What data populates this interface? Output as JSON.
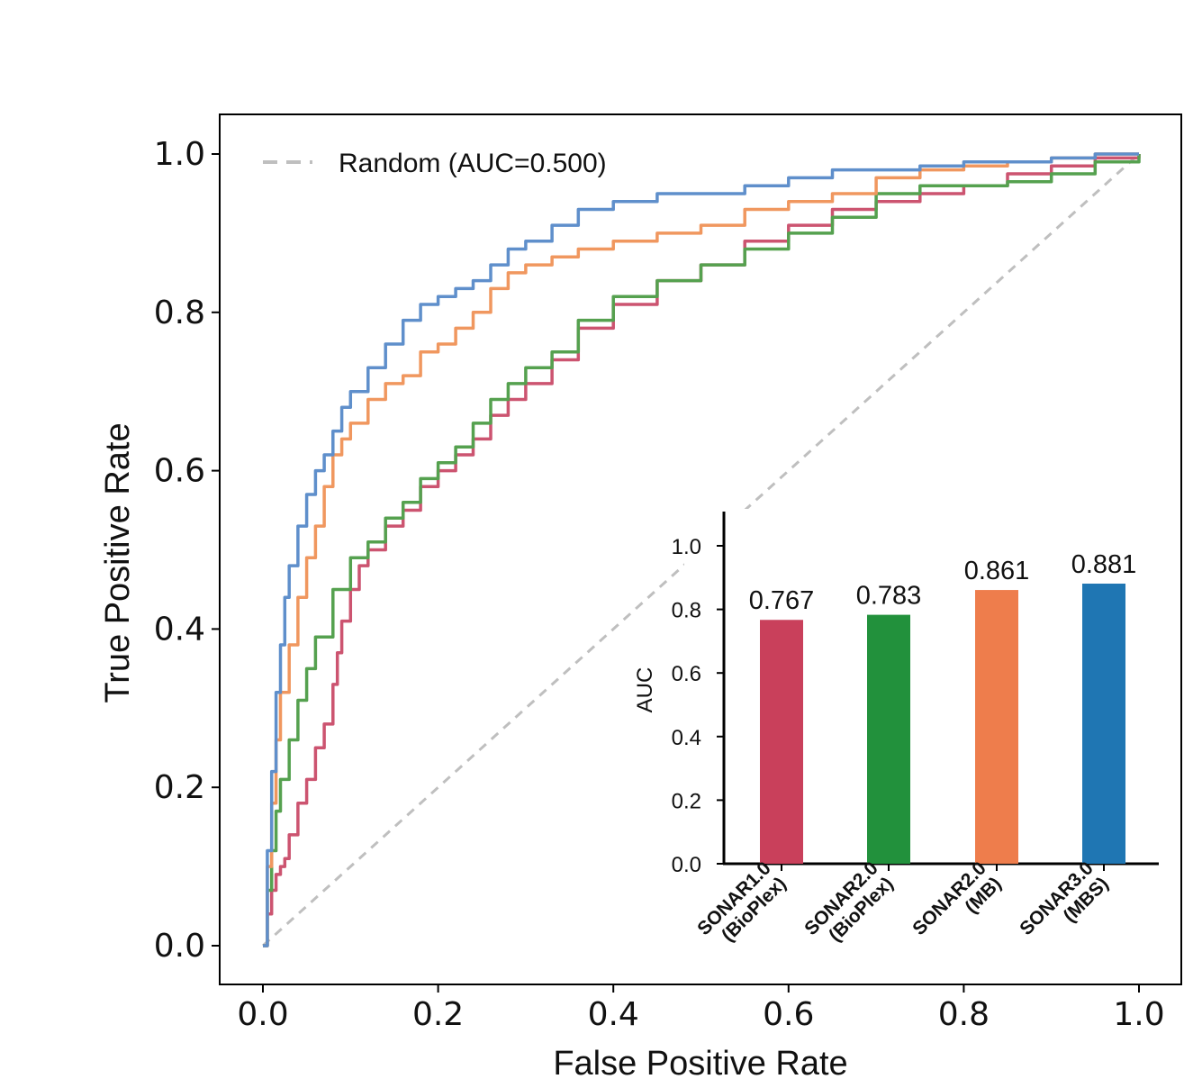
{
  "chart_data": [
    {
      "type": "line",
      "title": "",
      "xlabel": "False Positive Rate",
      "ylabel": "True Positive Rate",
      "xlim": [
        -0.05,
        1.05
      ],
      "ylim": [
        -0.05,
        1.05
      ],
      "xticks": [
        "0.0",
        "0.2",
        "0.4",
        "0.6",
        "0.8",
        "1.0"
      ],
      "yticks": [
        "0.0",
        "0.2",
        "0.4",
        "0.6",
        "0.8",
        "1.0"
      ],
      "grid": false,
      "legend": {
        "position": "top-left",
        "entries": [
          "Random (AUC=0.500)"
        ]
      },
      "series": [
        {
          "name": "Random (AUC=0.500)",
          "color": "#bfbfbf",
          "dashed": true,
          "x": [
            0.0,
            1.0
          ],
          "y": [
            0.0,
            1.0
          ]
        },
        {
          "name": "SONAR1.0 (BioPlex)",
          "color": "#cc5470",
          "x": [
            0.0,
            0.005,
            0.01,
            0.015,
            0.02,
            0.025,
            0.03,
            0.04,
            0.05,
            0.06,
            0.07,
            0.08,
            0.085,
            0.09,
            0.1,
            0.11,
            0.12,
            0.14,
            0.16,
            0.18,
            0.2,
            0.22,
            0.24,
            0.26,
            0.28,
            0.3,
            0.33,
            0.36,
            0.4,
            0.45,
            0.5,
            0.55,
            0.6,
            0.65,
            0.7,
            0.75,
            0.8,
            0.85,
            0.9,
            0.95,
            1.0
          ],
          "y": [
            0.0,
            0.04,
            0.07,
            0.09,
            0.1,
            0.11,
            0.14,
            0.18,
            0.21,
            0.25,
            0.28,
            0.33,
            0.37,
            0.41,
            0.45,
            0.48,
            0.5,
            0.53,
            0.55,
            0.58,
            0.6,
            0.62,
            0.64,
            0.67,
            0.69,
            0.71,
            0.74,
            0.78,
            0.81,
            0.84,
            0.86,
            0.89,
            0.91,
            0.93,
            0.94,
            0.95,
            0.96,
            0.975,
            0.985,
            0.995,
            1.0
          ]
        },
        {
          "name": "SONAR2.0 (BioPlex)",
          "color": "#55a14f",
          "x": [
            0.0,
            0.005,
            0.01,
            0.015,
            0.02,
            0.03,
            0.04,
            0.05,
            0.06,
            0.08,
            0.1,
            0.12,
            0.14,
            0.16,
            0.18,
            0.2,
            0.22,
            0.24,
            0.26,
            0.28,
            0.3,
            0.33,
            0.36,
            0.4,
            0.45,
            0.5,
            0.55,
            0.6,
            0.65,
            0.7,
            0.75,
            0.8,
            0.85,
            0.9,
            0.95,
            1.0
          ],
          "y": [
            0.0,
            0.07,
            0.12,
            0.17,
            0.21,
            0.26,
            0.31,
            0.35,
            0.39,
            0.45,
            0.49,
            0.51,
            0.54,
            0.56,
            0.59,
            0.61,
            0.63,
            0.66,
            0.69,
            0.71,
            0.73,
            0.75,
            0.79,
            0.82,
            0.84,
            0.86,
            0.88,
            0.9,
            0.92,
            0.95,
            0.96,
            0.96,
            0.965,
            0.975,
            0.99,
            1.0
          ]
        },
        {
          "name": "SONAR2.0 (MB)",
          "color": "#f0975f",
          "x": [
            0.0,
            0.005,
            0.01,
            0.015,
            0.02,
            0.03,
            0.04,
            0.05,
            0.06,
            0.07,
            0.08,
            0.09,
            0.1,
            0.12,
            0.14,
            0.16,
            0.18,
            0.2,
            0.22,
            0.24,
            0.26,
            0.28,
            0.3,
            0.33,
            0.36,
            0.4,
            0.45,
            0.5,
            0.55,
            0.6,
            0.65,
            0.7,
            0.75,
            0.8,
            0.85,
            0.9,
            0.95,
            1.0
          ],
          "y": [
            0.0,
            0.1,
            0.18,
            0.26,
            0.32,
            0.38,
            0.44,
            0.49,
            0.53,
            0.58,
            0.62,
            0.64,
            0.66,
            0.69,
            0.71,
            0.72,
            0.75,
            0.76,
            0.78,
            0.8,
            0.83,
            0.85,
            0.86,
            0.87,
            0.88,
            0.89,
            0.9,
            0.91,
            0.93,
            0.94,
            0.95,
            0.97,
            0.98,
            0.985,
            0.99,
            0.995,
            1.0,
            1.0
          ]
        },
        {
          "name": "SONAR3.0 (MBS)",
          "color": "#5f8fcb",
          "x": [
            0.0,
            0.005,
            0.01,
            0.015,
            0.02,
            0.025,
            0.03,
            0.04,
            0.05,
            0.06,
            0.07,
            0.08,
            0.09,
            0.1,
            0.12,
            0.14,
            0.16,
            0.18,
            0.2,
            0.22,
            0.24,
            0.26,
            0.28,
            0.3,
            0.33,
            0.36,
            0.4,
            0.45,
            0.5,
            0.55,
            0.6,
            0.65,
            0.7,
            0.75,
            0.8,
            0.85,
            0.9,
            0.95,
            1.0
          ],
          "y": [
            0.0,
            0.12,
            0.22,
            0.32,
            0.38,
            0.44,
            0.48,
            0.53,
            0.57,
            0.6,
            0.62,
            0.65,
            0.68,
            0.7,
            0.73,
            0.76,
            0.79,
            0.81,
            0.82,
            0.83,
            0.84,
            0.86,
            0.88,
            0.89,
            0.91,
            0.93,
            0.94,
            0.95,
            0.95,
            0.96,
            0.97,
            0.98,
            0.98,
            0.985,
            0.99,
            0.99,
            0.995,
            1.0,
            1.0
          ]
        }
      ]
    },
    {
      "type": "bar",
      "title": "",
      "xlabel": "",
      "ylabel": "AUC",
      "ylim": [
        0.0,
        1.1
      ],
      "yticks": [
        "0.0",
        "0.2",
        "0.4",
        "0.6",
        "0.8",
        "1.0"
      ],
      "categories": [
        "SONAR1.0\n(BioPlex)",
        "SONAR2.0\n(BioPlex)",
        "SONAR2.0\n(MB)",
        "SONAR3.0\n(MBS)"
      ],
      "category_lines": [
        [
          "SONAR1.0",
          "(BioPlex)"
        ],
        [
          "SONAR2.0",
          "(BioPlex)"
        ],
        [
          "SONAR2.0",
          "(MB)"
        ],
        [
          "SONAR3.0",
          "(MBS)"
        ]
      ],
      "values": [
        0.767,
        0.783,
        0.861,
        0.881
      ],
      "value_labels": [
        "0.767",
        "0.783",
        "0.861",
        "0.881"
      ],
      "colors": [
        "#c9405b",
        "#22913c",
        "#ee7d4c",
        "#1f76b3"
      ]
    }
  ]
}
